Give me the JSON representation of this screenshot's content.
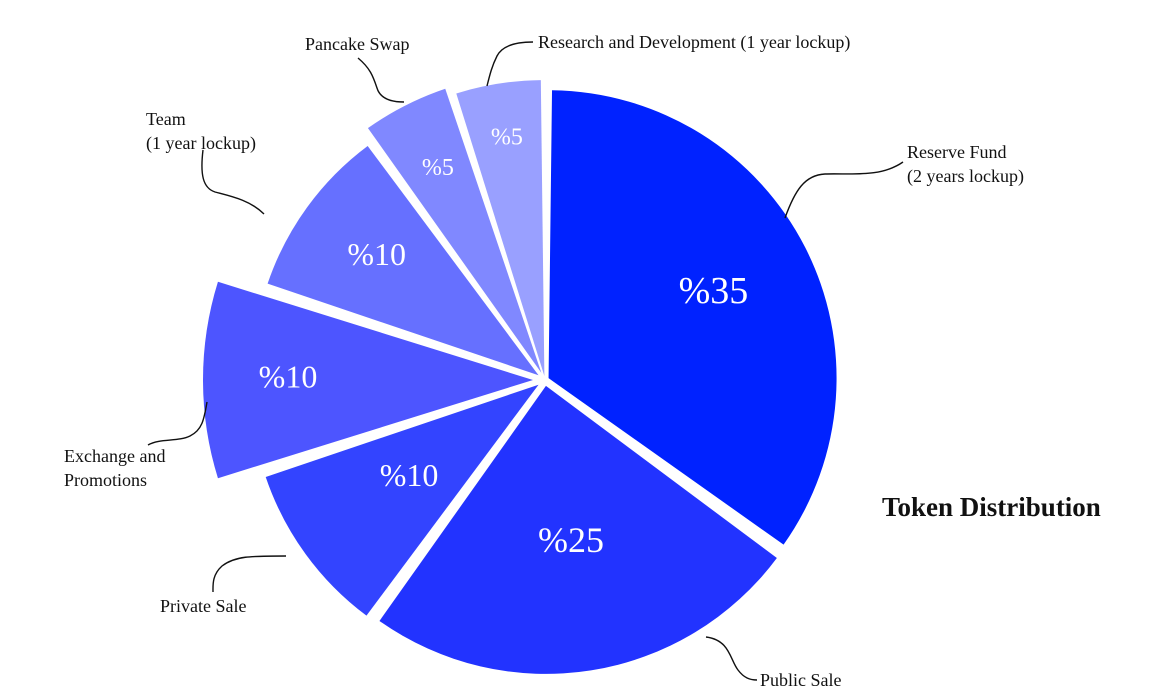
{
  "chart_data": {
    "type": "pie",
    "title": "Token Distribution",
    "slices": [
      {
        "label": [
          "Reserve Fund",
          "(2 years lockup)"
        ],
        "value": 35,
        "display": "%35",
        "color": "#0022ff"
      },
      {
        "label": [
          "Public Sale"
        ],
        "value": 25,
        "display": "%25",
        "color": "#2233ff"
      },
      {
        "label": [
          "Private Sale"
        ],
        "value": 10,
        "display": "%10",
        "color": "#3344ff"
      },
      {
        "label": [
          "Exchange and",
          "Promotions"
        ],
        "value": 10,
        "display": "%10",
        "color": "#4d55ff"
      },
      {
        "label": [
          "Team",
          "(1 year lockup)"
        ],
        "value": 10,
        "display": "%10",
        "color": "#6670ff"
      },
      {
        "label": [
          "Pancake Swap"
        ],
        "value": 5,
        "display": "%5",
        "color": "#8088ff"
      },
      {
        "label": [
          "Research and Development (1 year lockup)"
        ],
        "value": 5,
        "display": "%5",
        "color": "#99a0ff"
      }
    ]
  }
}
